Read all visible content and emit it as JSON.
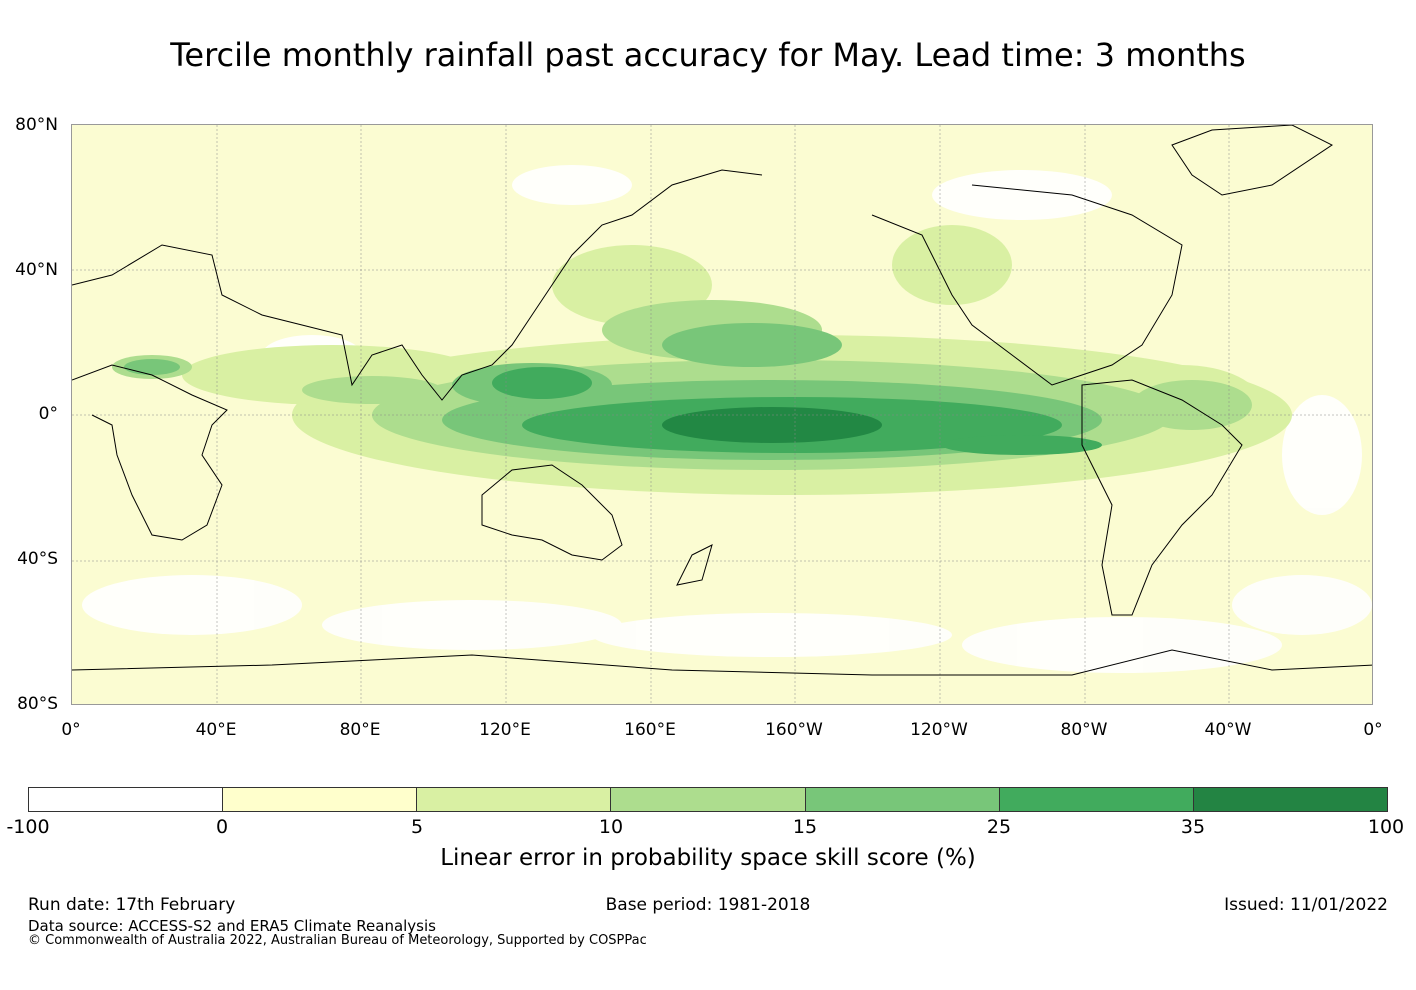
{
  "title": "Tercile monthly rainfall past accuracy for May. Lead time: 3 months",
  "map": {
    "lat_labels": [
      "80°N",
      "40°N",
      "0°",
      "40°S",
      "80°S"
    ],
    "lon_labels": [
      "0°",
      "40°E",
      "80°E",
      "120°E",
      "160°E",
      "160°W",
      "120°W",
      "80°W",
      "40°W",
      "0°"
    ],
    "land_color": "#fbfcd2",
    "regions": [
      {
        "name": "equatorial-pacific-core",
        "level": "35-100",
        "color": "#228844"
      },
      {
        "name": "equatorial-pacific-band",
        "level": "25-35",
        "color": "#41ab5d"
      },
      {
        "name": "maritime-continent",
        "level": "25-35",
        "color": "#41ab5d"
      },
      {
        "name": "north-pacific-band",
        "level": "15-25",
        "color": "#78c679"
      },
      {
        "name": "tropical-atlantic",
        "level": "10-15",
        "color": "#addd8e"
      },
      {
        "name": "indian-ocean",
        "level": "10-15",
        "color": "#addd8e"
      },
      {
        "name": "sahel",
        "level": "15-25",
        "color": "#78c679"
      }
    ]
  },
  "colorbar": {
    "ticks": [
      "-100",
      "0",
      "5",
      "10",
      "15",
      "25",
      "35",
      "100"
    ],
    "colors": [
      "#ffffff",
      "#ffffcc",
      "#d9f0a3",
      "#addd8e",
      "#78c679",
      "#41ab5d",
      "#238443"
    ],
    "label": "Linear error in probability space skill score (%)"
  },
  "footer": {
    "run_date": "Run date: 17th February",
    "base_period": "Base period: 1981-2018",
    "issued": "Issued: 11/01/2022",
    "data_source": "Data source: ACCESS-S2 and ERA5 Climate Reanalysis",
    "copyright": "© Commonwealth of Australia 2022, Australian Bureau of Meteorology, Supported by COSPPac"
  }
}
